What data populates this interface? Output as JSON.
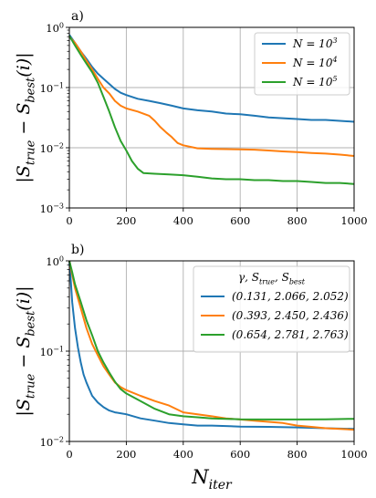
{
  "chart_data": [
    {
      "type": "line",
      "panel_label": "a)",
      "ylabel": "|S_true − S_best(i)|",
      "xlabel": "",
      "xlim": [
        0,
        1000
      ],
      "ylim": [
        0.001,
        1
      ],
      "yscale": "log",
      "grid": true,
      "legend_position": "top-right",
      "legend_title": "",
      "x_ticks": [
        0,
        200,
        400,
        600,
        800,
        1000
      ],
      "y_ticks": [
        0.001,
        0.01,
        0.1,
        1
      ],
      "y_tick_labels": [
        "10^-3",
        "10^-2",
        "10^-1",
        "10^0"
      ],
      "series": [
        {
          "name": "N = 10^3",
          "color": "#1f77b4",
          "points": [
            [
              0,
              0.75
            ],
            [
              20,
              0.55
            ],
            [
              40,
              0.4
            ],
            [
              60,
              0.3
            ],
            [
              80,
              0.22
            ],
            [
              100,
              0.17
            ],
            [
              120,
              0.14
            ],
            [
              140,
              0.115
            ],
            [
              160,
              0.095
            ],
            [
              180,
              0.082
            ],
            [
              200,
              0.075
            ],
            [
              240,
              0.065
            ],
            [
              280,
              0.06
            ],
            [
              320,
              0.055
            ],
            [
              360,
              0.05
            ],
            [
              400,
              0.045
            ],
            [
              450,
              0.042
            ],
            [
              500,
              0.04
            ],
            [
              550,
              0.037
            ],
            [
              600,
              0.036
            ],
            [
              650,
              0.034
            ],
            [
              700,
              0.032
            ],
            [
              750,
              0.031
            ],
            [
              800,
              0.03
            ],
            [
              850,
              0.029
            ],
            [
              900,
              0.029
            ],
            [
              950,
              0.028
            ],
            [
              1000,
              0.027
            ]
          ]
        },
        {
          "name": "N = 10^4",
          "color": "#ff7f0e",
          "points": [
            [
              0,
              0.7
            ],
            [
              20,
              0.55
            ],
            [
              40,
              0.4
            ],
            [
              60,
              0.28
            ],
            [
              80,
              0.2
            ],
            [
              100,
              0.14
            ],
            [
              120,
              0.1
            ],
            [
              140,
              0.08
            ],
            [
              160,
              0.06
            ],
            [
              180,
              0.05
            ],
            [
              200,
              0.045
            ],
            [
              240,
              0.04
            ],
            [
              280,
              0.034
            ],
            [
              300,
              0.028
            ],
            [
              320,
              0.022
            ],
            [
              340,
              0.018
            ],
            [
              360,
              0.015
            ],
            [
              380,
              0.012
            ],
            [
              400,
              0.011
            ],
            [
              450,
              0.0098
            ],
            [
              500,
              0.0096
            ],
            [
              550,
              0.0095
            ],
            [
              600,
              0.0094
            ],
            [
              650,
              0.0093
            ],
            [
              700,
              0.009
            ],
            [
              750,
              0.0087
            ],
            [
              800,
              0.0085
            ],
            [
              850,
              0.0082
            ],
            [
              900,
              0.008
            ],
            [
              950,
              0.0077
            ],
            [
              1000,
              0.0073
            ]
          ]
        },
        {
          "name": "N = 10^5",
          "color": "#2ca02c",
          "points": [
            [
              0,
              0.72
            ],
            [
              20,
              0.5
            ],
            [
              40,
              0.35
            ],
            [
              60,
              0.25
            ],
            [
              80,
              0.18
            ],
            [
              100,
              0.12
            ],
            [
              120,
              0.07
            ],
            [
              140,
              0.04
            ],
            [
              160,
              0.022
            ],
            [
              180,
              0.013
            ],
            [
              200,
              0.009
            ],
            [
              220,
              0.006
            ],
            [
              240,
              0.0045
            ],
            [
              260,
              0.0038
            ],
            [
              300,
              0.0037
            ],
            [
              350,
              0.0036
            ],
            [
              400,
              0.0035
            ],
            [
              450,
              0.0033
            ],
            [
              500,
              0.0031
            ],
            [
              550,
              0.003
            ],
            [
              600,
              0.003
            ],
            [
              650,
              0.0029
            ],
            [
              700,
              0.0029
            ],
            [
              750,
              0.0028
            ],
            [
              800,
              0.0028
            ],
            [
              850,
              0.0027
            ],
            [
              900,
              0.0026
            ],
            [
              950,
              0.0026
            ],
            [
              1000,
              0.0025
            ]
          ]
        }
      ]
    },
    {
      "type": "line",
      "panel_label": "b)",
      "ylabel": "|S_true − S_best(i)|",
      "xlabel": "N_iter",
      "xlim": [
        0,
        1000
      ],
      "ylim": [
        0.01,
        1
      ],
      "yscale": "log",
      "grid": true,
      "legend_position": "top-right",
      "legend_title": "γ, S_true, S_best",
      "x_ticks": [
        0,
        200,
        400,
        600,
        800,
        1000
      ],
      "y_ticks": [
        0.01,
        0.1,
        1
      ],
      "y_tick_labels": [
        "10^-2",
        "10^-1",
        "10^0"
      ],
      "series": [
        {
          "name": "(0.131, 2.066, 2.052)",
          "color": "#1f77b4",
          "points": [
            [
              0,
              1.0
            ],
            [
              5,
              0.6
            ],
            [
              10,
              0.35
            ],
            [
              20,
              0.18
            ],
            [
              30,
              0.11
            ],
            [
              40,
              0.075
            ],
            [
              50,
              0.055
            ],
            [
              60,
              0.045
            ],
            [
              70,
              0.038
            ],
            [
              80,
              0.032
            ],
            [
              100,
              0.027
            ],
            [
              120,
              0.024
            ],
            [
              140,
              0.022
            ],
            [
              160,
              0.021
            ],
            [
              180,
              0.0205
            ],
            [
              200,
              0.02
            ],
            [
              250,
              0.018
            ],
            [
              300,
              0.017
            ],
            [
              350,
              0.016
            ],
            [
              400,
              0.0155
            ],
            [
              450,
              0.015
            ],
            [
              500,
              0.015
            ],
            [
              550,
              0.0148
            ],
            [
              600,
              0.0146
            ],
            [
              700,
              0.0145
            ],
            [
              800,
              0.0143
            ],
            [
              900,
              0.014
            ],
            [
              1000,
              0.0138
            ]
          ]
        },
        {
          "name": "(0.393, 2.450, 2.436)",
          "color": "#ff7f0e",
          "points": [
            [
              0,
              1.0
            ],
            [
              10,
              0.7
            ],
            [
              20,
              0.5
            ],
            [
              40,
              0.3
            ],
            [
              60,
              0.18
            ],
            [
              80,
              0.12
            ],
            [
              100,
              0.09
            ],
            [
              120,
              0.068
            ],
            [
              140,
              0.055
            ],
            [
              160,
              0.045
            ],
            [
              180,
              0.04
            ],
            [
              200,
              0.037
            ],
            [
              250,
              0.032
            ],
            [
              300,
              0.028
            ],
            [
              350,
              0.025
            ],
            [
              400,
              0.021
            ],
            [
              450,
              0.02
            ],
            [
              500,
              0.019
            ],
            [
              550,
              0.018
            ],
            [
              600,
              0.0175
            ],
            [
              650,
              0.017
            ],
            [
              700,
              0.0165
            ],
            [
              750,
              0.016
            ],
            [
              800,
              0.015
            ],
            [
              850,
              0.0145
            ],
            [
              900,
              0.014
            ],
            [
              950,
              0.0138
            ],
            [
              1000,
              0.0135
            ]
          ]
        },
        {
          "name": "(0.654, 2.781, 2.763)",
          "color": "#2ca02c",
          "points": [
            [
              0,
              1.0
            ],
            [
              10,
              0.75
            ],
            [
              20,
              0.55
            ],
            [
              40,
              0.35
            ],
            [
              60,
              0.22
            ],
            [
              80,
              0.15
            ],
            [
              100,
              0.1
            ],
            [
              120,
              0.075
            ],
            [
              140,
              0.058
            ],
            [
              160,
              0.046
            ],
            [
              180,
              0.038
            ],
            [
              200,
              0.034
            ],
            [
              250,
              0.028
            ],
            [
              300,
              0.023
            ],
            [
              350,
              0.02
            ],
            [
              400,
              0.019
            ],
            [
              450,
              0.0185
            ],
            [
              500,
              0.018
            ],
            [
              550,
              0.0178
            ],
            [
              600,
              0.0176
            ],
            [
              700,
              0.0175
            ],
            [
              800,
              0.0175
            ],
            [
              900,
              0.0176
            ],
            [
              1000,
              0.0178
            ]
          ]
        }
      ]
    }
  ]
}
